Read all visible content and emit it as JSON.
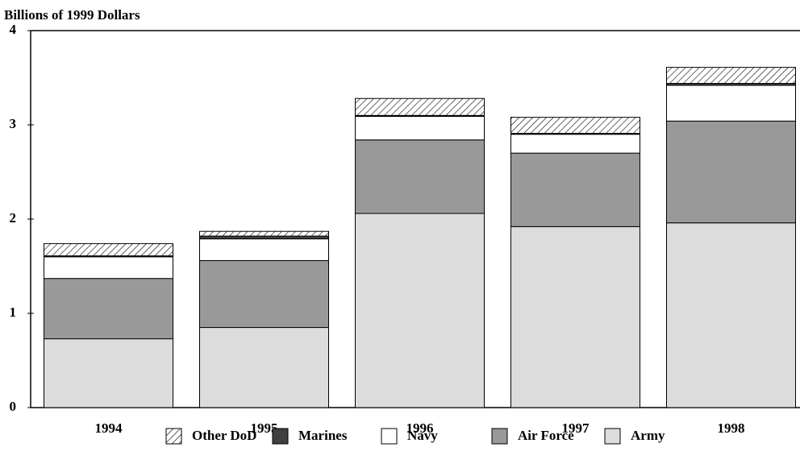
{
  "chart_data": {
    "type": "stacked_bar",
    "ylabel": "Billions of 1999 Dollars",
    "categories": [
      "1994",
      "1995",
      "1996",
      "1997",
      "1998"
    ],
    "series": [
      {
        "name": "Other DoD",
        "color": "#ffffff",
        "pattern": "hatch",
        "values": [
          0.13,
          0.05,
          0.18,
          0.17,
          0.17
        ]
      },
      {
        "name": "Marines",
        "color": "#404040",
        "values": [
          0.01,
          0.03,
          0.01,
          0.01,
          0.02
        ]
      },
      {
        "name": "Navy",
        "color": "#ffffff",
        "values": [
          0.23,
          0.23,
          0.25,
          0.2,
          0.38
        ]
      },
      {
        "name": "Air Force",
        "color": "#999999",
        "values": [
          0.64,
          0.71,
          0.78,
          0.78,
          1.08
        ]
      },
      {
        "name": "Army",
        "color": "#dcdcdc",
        "values": [
          0.73,
          0.85,
          2.06,
          1.92,
          1.96
        ]
      }
    ],
    "ylim": [
      0,
      4
    ],
    "yticks": [
      0,
      1,
      2,
      3,
      4
    ],
    "grid": false,
    "legend": "bottom"
  }
}
